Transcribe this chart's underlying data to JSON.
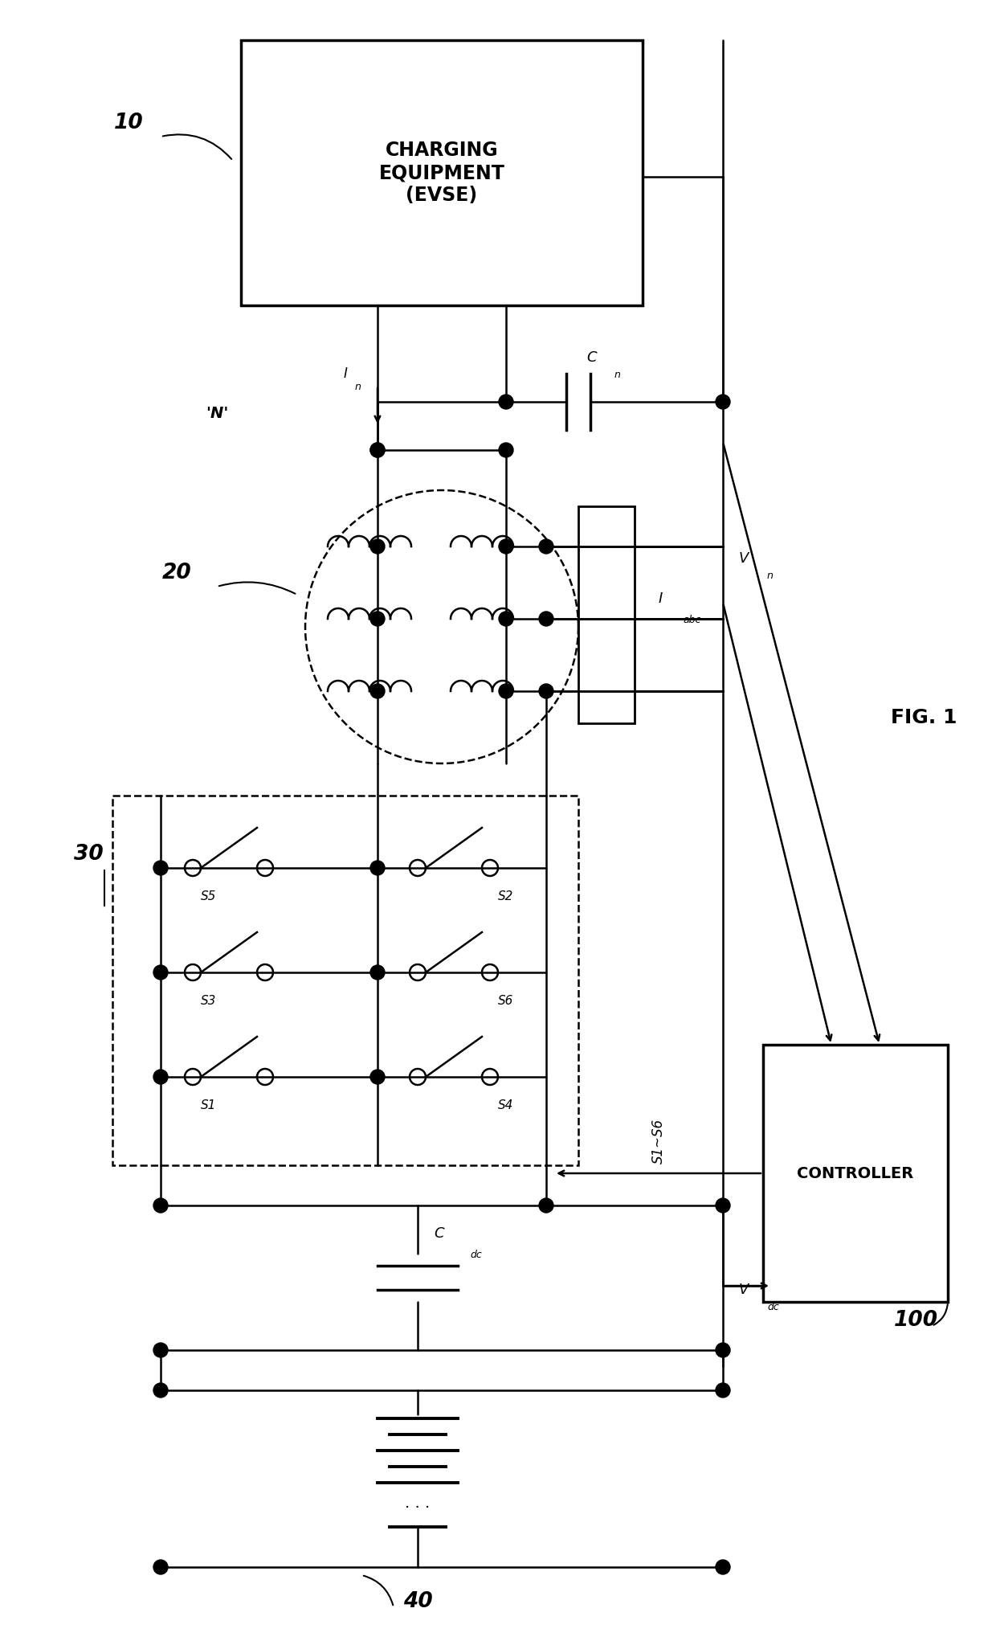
{
  "title": "FIG. 1",
  "bg_color": "#ffffff",
  "line_color": "#000000",
  "labels": {
    "evse_box": "CHARGING\nEQUIPMENT\n(EVSE)",
    "controller_box": "CONTROLLER",
    "ref10": "10",
    "ref20": "20",
    "ref30": "30",
    "ref40": "40",
    "ref100": "100",
    "N_label": "'N'",
    "In_label": "I",
    "In_sub": "n",
    "Cn_label": "C",
    "Cn_sub": "n",
    "Vn_label": "V",
    "Vn_sub": "n",
    "Iabc_label": "I",
    "Iabc_sub": "abc",
    "Cdc_label": "C",
    "Cdc_sub": "dc",
    "Vdc_label": "V",
    "Vdc_sub": "dc",
    "S1S6_label": "S1~S6",
    "S1": "S1",
    "S2": "S2",
    "S3": "S3",
    "S4": "S4",
    "S5": "S5",
    "S6": "S6"
  }
}
